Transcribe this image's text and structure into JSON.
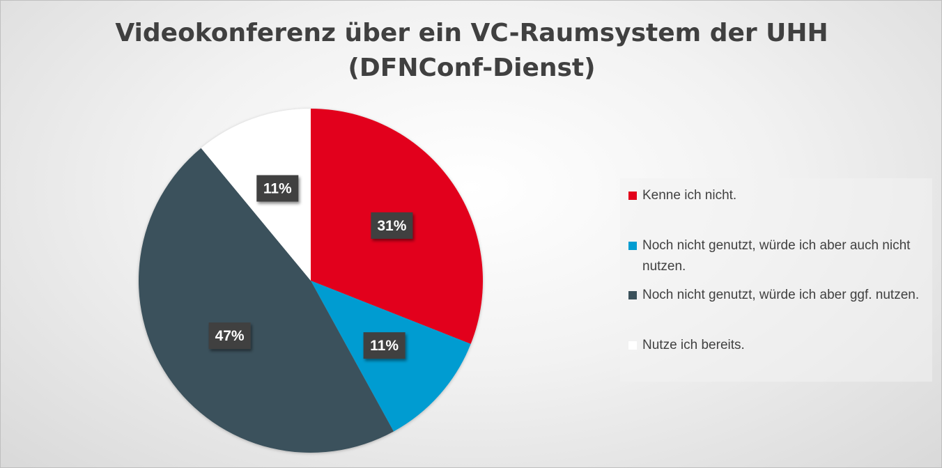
{
  "chart_data": {
    "type": "pie",
    "title_lines": [
      "Videokonferenz über ein VC-Raumsystem der UHH",
      "(DFNConf-Dienst)"
    ],
    "slices": [
      {
        "label": "Kenne ich nicht.",
        "value": 31,
        "data_label": "31%",
        "color": "#E2001A"
      },
      {
        "label": "Noch nicht genutzt, würde ich aber auch nicht nutzen.",
        "value": 11,
        "data_label": "11%",
        "color": "#009CD1"
      },
      {
        "label": "Noch nicht genutzt, würde ich aber ggf. nutzen.",
        "value": 47,
        "data_label": "47%",
        "color": "#3B515B"
      },
      {
        "label": "Nutze ich bereits.",
        "value": 11,
        "data_label": "11%",
        "color": "#FFFFFF"
      }
    ],
    "start": "12 o'clock",
    "direction": "clockwise",
    "legend_position": "right",
    "data_label_style": {
      "background": "#404040",
      "text_color": "#FFFFFF"
    }
  }
}
